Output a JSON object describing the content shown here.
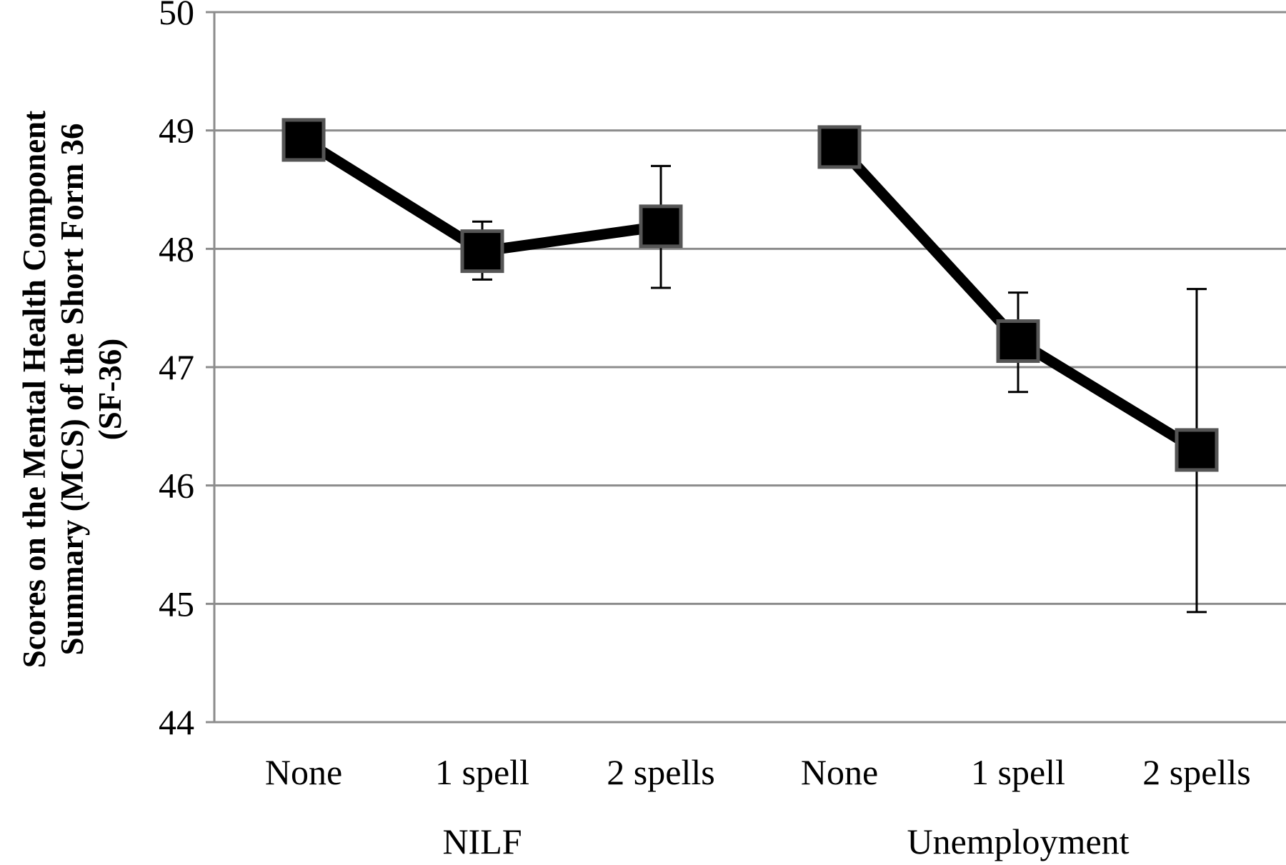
{
  "chart_data": {
    "type": "line",
    "title": "",
    "xlabel": "",
    "ylabel_lines": [
      "Scores on the Mental Health Component",
      "Summary (MCS) of the Short Form 36",
      "(SF-36)"
    ],
    "ylim": [
      44,
      50
    ],
    "yticks": [
      44,
      45,
      46,
      47,
      48,
      49,
      50
    ],
    "grid": true,
    "legend": "none",
    "groups": [
      {
        "name": "NILF",
        "categories": [
          "None",
          "1 spell",
          "2 spells"
        ],
        "values": [
          48.92,
          47.98,
          48.19
        ],
        "error_low": [
          null,
          47.74,
          47.67
        ],
        "error_high": [
          null,
          48.23,
          48.7
        ]
      },
      {
        "name": "Unemployment",
        "categories": [
          "None",
          "1 spell",
          "2 spells"
        ],
        "values": [
          48.86,
          47.22,
          46.3
        ],
        "error_low": [
          null,
          46.79,
          44.93
        ],
        "error_high": [
          null,
          47.63,
          47.66
        ]
      }
    ],
    "colors": {
      "series": "#000000",
      "grid": "#8c8c8c",
      "marker_edge": "#555555"
    }
  }
}
